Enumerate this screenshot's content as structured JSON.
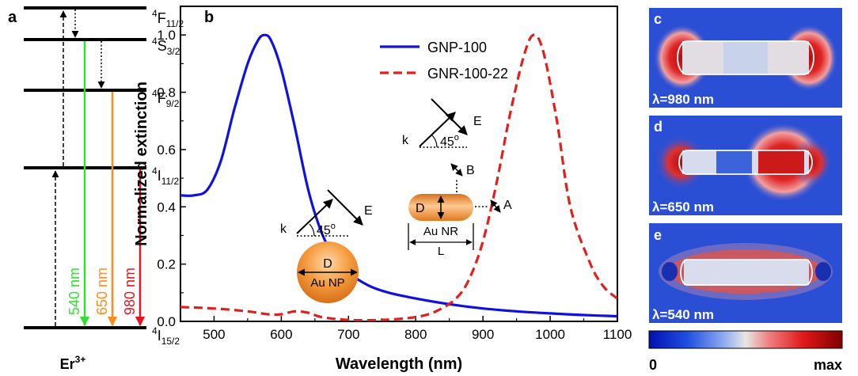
{
  "panel_a": {
    "letter": "a",
    "ion_base": "Er",
    "ion_sup": "3+",
    "levels": [
      {
        "base": "4",
        "term": "F",
        "sub": "11/2"
      },
      {
        "base": "4",
        "term": "S",
        "sub": "3/2"
      },
      {
        "base": "4",
        "term": "F",
        "sub": "9/2"
      },
      {
        "base": "4",
        "term": "I",
        "sub": "11/2"
      },
      {
        "base": "4",
        "term": "I",
        "sub": "15/2"
      }
    ],
    "emissions": [
      {
        "label": "540 nm",
        "color": "#33dd33"
      },
      {
        "label": "650 nm",
        "color": "#ff8c1a"
      },
      {
        "label": "980 nm",
        "color": "#e8141e"
      }
    ]
  },
  "chart_data": {
    "type": "line",
    "panel_letter": "b",
    "xlabel": "Wavelength (nm)",
    "ylabel": "Normalized extinction",
    "xlim": [
      450,
      1100
    ],
    "ylim": [
      0,
      1.1
    ],
    "xticks": [
      "500",
      "600",
      "700",
      "800",
      "900",
      "1000",
      "1100"
    ],
    "yticks": [
      "0.0",
      "0.2",
      "0.4",
      "0.6",
      "0.8",
      "1.0"
    ],
    "legend_position": "top-right",
    "series": [
      {
        "name": "GNP-100",
        "color": "#1010e0",
        "style": "solid",
        "x": [
          450,
          470,
          490,
          510,
          530,
          550,
          565,
          575,
          585,
          600,
          620,
          640,
          660,
          680,
          700,
          730,
          760,
          800,
          850,
          900,
          950,
          1000,
          1050,
          1100
        ],
        "y": [
          0.44,
          0.44,
          0.46,
          0.56,
          0.74,
          0.9,
          0.98,
          1.0,
          0.98,
          0.88,
          0.68,
          0.46,
          0.31,
          0.22,
          0.17,
          0.125,
          0.1,
          0.08,
          0.06,
          0.045,
          0.035,
          0.028,
          0.022,
          0.018
        ]
      },
      {
        "name": "GNR-100-22",
        "color": "#e02020",
        "style": "dashed",
        "x": [
          450,
          500,
          550,
          580,
          600,
          620,
          640,
          660,
          700,
          750,
          800,
          830,
          860,
          880,
          900,
          920,
          940,
          960,
          975,
          990,
          1010,
          1030,
          1060,
          1080,
          1100
        ],
        "y": [
          0.05,
          0.045,
          0.035,
          0.025,
          0.025,
          0.035,
          0.03,
          0.015,
          0.005,
          0.005,
          0.015,
          0.035,
          0.08,
          0.15,
          0.28,
          0.48,
          0.72,
          0.92,
          1.0,
          0.94,
          0.7,
          0.4,
          0.2,
          0.12,
          0.08
        ]
      }
    ],
    "annotations": {
      "k": "k",
      "e": "E",
      "angle": "45",
      "angle_sup": "o",
      "d": "D",
      "l": "L",
      "a": "A",
      "b": "B",
      "nr_label": "Au NR",
      "np_label": "Au NP"
    }
  },
  "maps": [
    {
      "letter": "c",
      "caption": "λ=980 nm"
    },
    {
      "letter": "d",
      "caption": "λ=650 nm"
    },
    {
      "letter": "e",
      "caption": "λ=540 nm"
    }
  ],
  "colorbar": {
    "min_label": "0",
    "max_label": "max"
  }
}
